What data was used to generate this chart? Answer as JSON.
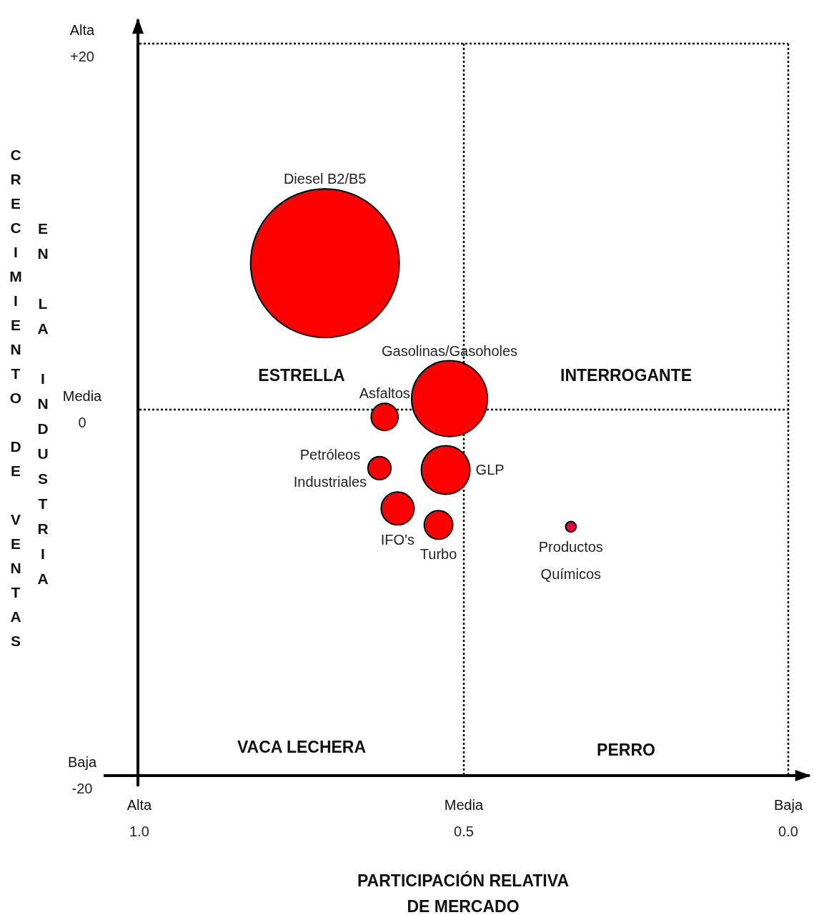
{
  "chart_data": {
    "type": "bubble",
    "xlabel": "PARTICIPACIÓN RELATIVA DE MERCADO",
    "ylabel": "CRECIMIENTO DE VENTAS EN LA INDUSTRIA",
    "xlim": [
      1,
      -0.035
    ],
    "xticks": [
      {
        "value": 1,
        "label": "1.0"
      },
      0.5,
      {
        "value": 0,
        "label": "0.0"
      }
    ],
    "ylim": [
      -20,
      21.4
    ],
    "yticks": [
      {
        "value": 20,
        "label": "+20"
      },
      0,
      -20
    ],
    "series": [
      {
        "name": "Diesel B2/B5",
        "color": "#ff0000",
        "x": [
          0.714
        ],
        "values": [
          8
        ],
        "sizes": [
          1
        ]
      },
      {
        "name": "Gasolinas/Gasoholes",
        "color": "#ff0000",
        "x": [
          0.522
        ],
        "values": [
          0.6
        ],
        "sizes": [
          0.26
        ]
      },
      {
        "name": "Asfaltos",
        "color": "#ff0000",
        "x": [
          0.622
        ],
        "values": [
          -0.4
        ],
        "sizes": [
          0.033
        ]
      },
      {
        "name": "Petróleos Industriales",
        "color": "#ff0000",
        "x": [
          0.63
        ],
        "values": [
          -3.2
        ],
        "sizes": [
          0.024
        ]
      },
      {
        "name": "GLP",
        "color": "#ff0000",
        "x": [
          0.528
        ],
        "values": [
          -3.3
        ],
        "sizes": [
          0.107
        ]
      },
      {
        "name": "IFO's",
        "color": "#ff0000",
        "x": [
          0.602
        ],
        "values": [
          -5.4
        ],
        "sizes": [
          0.049
        ]
      },
      {
        "name": "Turbo",
        "color": "#ff0000",
        "x": [
          0.539
        ],
        "values": [
          -6.3
        ],
        "sizes": [
          0.037
        ]
      },
      {
        "name": "Productos Químicos",
        "color": "#e8003a",
        "x": [
          0.335
        ],
        "values": [
          -6.4
        ],
        "sizes": [
          0.005
        ]
      }
    ],
    "annotations": [
      "ESTRELLA",
      "INTERROGANTE",
      "VACA LECHERA",
      "PERRO",
      "Alta",
      "Media",
      "Baja",
      "Alta",
      "Media",
      "Baja"
    ],
    "ref_lines": [
      {
        "axis": "x",
        "value": 0.5,
        "line_style": "dotted"
      },
      {
        "axis": "y",
        "value": 0,
        "line_style": "dotted"
      },
      {
        "axis": "y",
        "value": 20,
        "line_style": "dotted"
      },
      {
        "axis": "x",
        "value": 0,
        "line_style": "dotted"
      }
    ],
    "grid": false,
    "marker": "circle"
  }
}
